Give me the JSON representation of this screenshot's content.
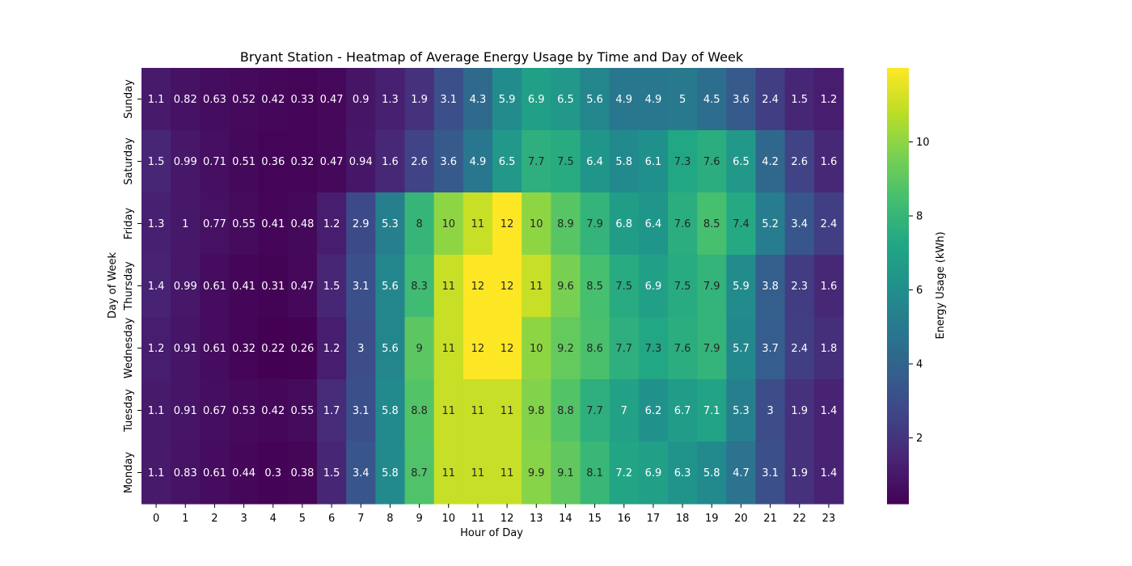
{
  "chart_data": {
    "type": "heatmap",
    "title": "Bryant Station - Heatmap of Average Energy Usage by Time and Day of Week",
    "xlabel": "Hour of Day",
    "ylabel": "Day of Week",
    "colorbar_label": "Energy Usage (kWh)",
    "colormap": "viridis",
    "color_range": [
      0.22,
      12
    ],
    "colorbar_ticks": [
      "2",
      "4",
      "6",
      "8",
      "10"
    ],
    "x": [
      "0",
      "1",
      "2",
      "3",
      "4",
      "5",
      "6",
      "7",
      "8",
      "9",
      "10",
      "11",
      "12",
      "13",
      "14",
      "15",
      "16",
      "17",
      "18",
      "19",
      "20",
      "21",
      "22",
      "23"
    ],
    "y": [
      "Sunday",
      "Saturday",
      "Friday",
      "Thursday",
      "Wednesday",
      "Tuesday",
      "Monday"
    ],
    "cells": [
      [
        "1.1",
        "0.82",
        "0.63",
        "0.52",
        "0.42",
        "0.33",
        "0.47",
        "0.9",
        "1.3",
        "1.9",
        "3.1",
        "4.3",
        "5.9",
        "6.9",
        "6.5",
        "5.6",
        "4.9",
        "4.9",
        "5",
        "4.5",
        "3.6",
        "2.4",
        "1.5",
        "1.2"
      ],
      [
        "1.5",
        "0.99",
        "0.71",
        "0.51",
        "0.36",
        "0.32",
        "0.47",
        "0.94",
        "1.6",
        "2.6",
        "3.6",
        "4.9",
        "6.5",
        "7.7",
        "7.5",
        "6.4",
        "5.8",
        "6.1",
        "7.3",
        "7.6",
        "6.5",
        "4.2",
        "2.6",
        "1.6"
      ],
      [
        "1.3",
        "1",
        "0.77",
        "0.55",
        "0.41",
        "0.48",
        "1.2",
        "2.9",
        "5.3",
        "8",
        "10",
        "11",
        "12",
        "10",
        "8.9",
        "7.9",
        "6.8",
        "6.4",
        "7.6",
        "8.5",
        "7.4",
        "5.2",
        "3.4",
        "2.4"
      ],
      [
        "1.4",
        "0.99",
        "0.61",
        "0.41",
        "0.31",
        "0.47",
        "1.5",
        "3.1",
        "5.6",
        "8.3",
        "11",
        "12",
        "12",
        "11",
        "9.6",
        "8.5",
        "7.5",
        "6.9",
        "7.5",
        "7.9",
        "5.9",
        "3.8",
        "2.3",
        "1.6"
      ],
      [
        "1.2",
        "0.91",
        "0.61",
        "0.32",
        "0.22",
        "0.26",
        "1.2",
        "3",
        "5.6",
        "9",
        "11",
        "12",
        "12",
        "10",
        "9.2",
        "8.6",
        "7.7",
        "7.3",
        "7.6",
        "7.9",
        "5.7",
        "3.7",
        "2.4",
        "1.8"
      ],
      [
        "1.1",
        "0.91",
        "0.67",
        "0.53",
        "0.42",
        "0.55",
        "1.7",
        "3.1",
        "5.8",
        "8.8",
        "11",
        "11",
        "11",
        "9.8",
        "8.8",
        "7.7",
        "7",
        "6.2",
        "6.7",
        "7.1",
        "5.3",
        "3",
        "1.9",
        "1.4"
      ],
      [
        "1.1",
        "0.83",
        "0.61",
        "0.44",
        "0.3",
        "0.38",
        "1.5",
        "3.4",
        "5.8",
        "8.7",
        "11",
        "11",
        "11",
        "9.9",
        "9.1",
        "8.1",
        "7.2",
        "6.9",
        "6.3",
        "5.8",
        "4.7",
        "3.1",
        "1.9",
        "1.4"
      ]
    ]
  }
}
